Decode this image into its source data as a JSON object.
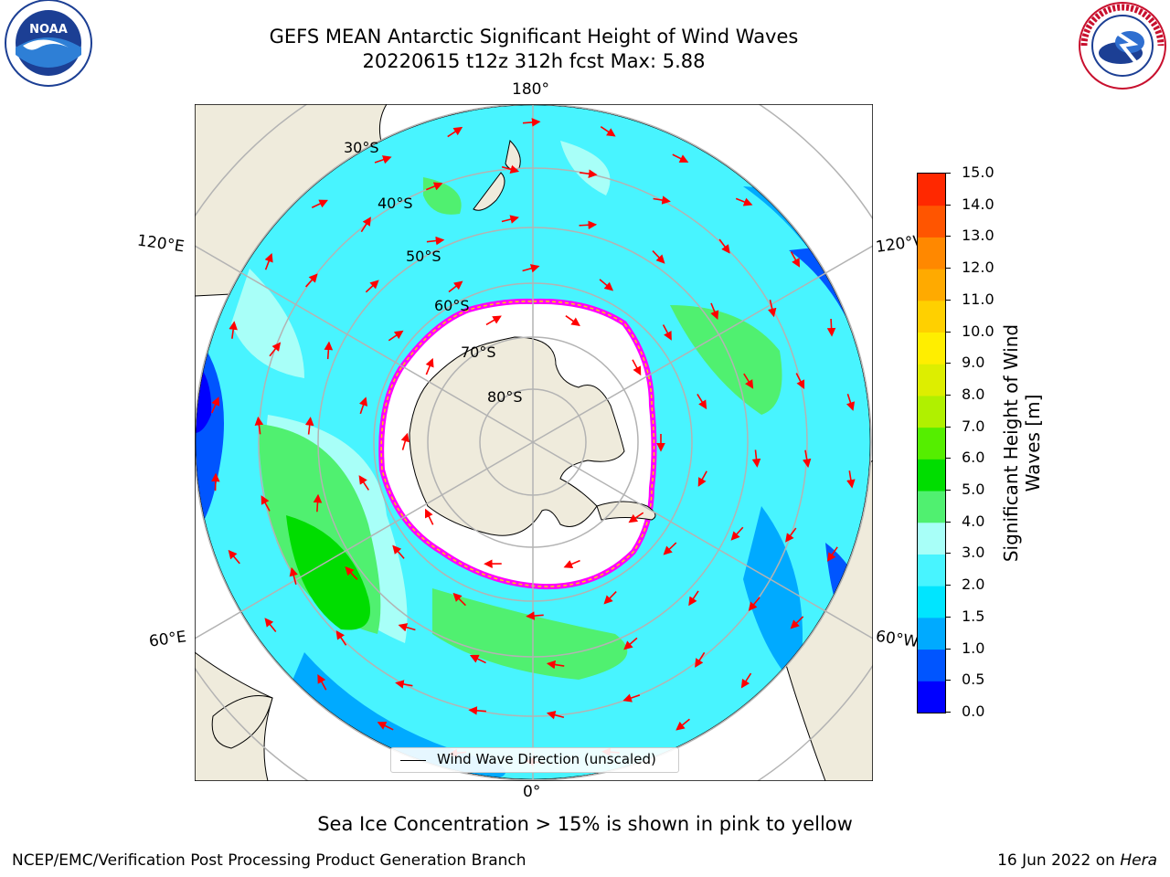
{
  "title": {
    "line1": "GEFS MEAN Antarctic Significant Height of Wind Waves",
    "line2": "20220615 t12z 312h fcst   Max: 5.88"
  },
  "map": {
    "longitude_labels": {
      "top": "180°",
      "bottom": "0°",
      "upper_left": "120°E",
      "upper_right": "120°W",
      "lower_left": "60°E",
      "lower_right": "60°W"
    },
    "latitude_labels": [
      "30°S",
      "40°S",
      "50°S",
      "60°S",
      "70°S",
      "80°S"
    ],
    "legend": "Wind Wave Direction (unscaled)",
    "colors": {
      "land": "#efebdc",
      "ice": "#ffffff",
      "ice_edge": "#ff00ff",
      "arrow": "#ff0000",
      "grid": "#b3b3b3"
    }
  },
  "colorbar": {
    "label": "Significant Height of Wind Waves [m]",
    "ticks": [
      "0.0",
      "0.5",
      "1.0",
      "1.5",
      "2.0",
      "3.0",
      "4.0",
      "5.0",
      "6.0",
      "7.0",
      "8.0",
      "9.0",
      "10.0",
      "11.0",
      "12.0",
      "13.0",
      "14.0",
      "15.0"
    ],
    "colors": [
      "#0000ff",
      "#0055ff",
      "#00aaff",
      "#00e5ff",
      "#48f4ff",
      "#a8fff8",
      "#50f070",
      "#00dd00",
      "#55ee00",
      "#b0f000",
      "#ddee00",
      "#ffee00",
      "#ffd000",
      "#ffaa00",
      "#ff8800",
      "#ff5500",
      "#ff2800",
      "#ff0000"
    ]
  },
  "subtitle": "Sea Ice Concentration > 15% is shown in pink to yellow",
  "footer": {
    "left": "NCEP/EMC/Verification Post Processing Product Generation Branch",
    "right_prefix": "16 Jun 2022 on",
    "right_machine": "Hera"
  },
  "logos": {
    "left": "NOAA",
    "right": "NATIONAL WEATHER SERVICE"
  }
}
